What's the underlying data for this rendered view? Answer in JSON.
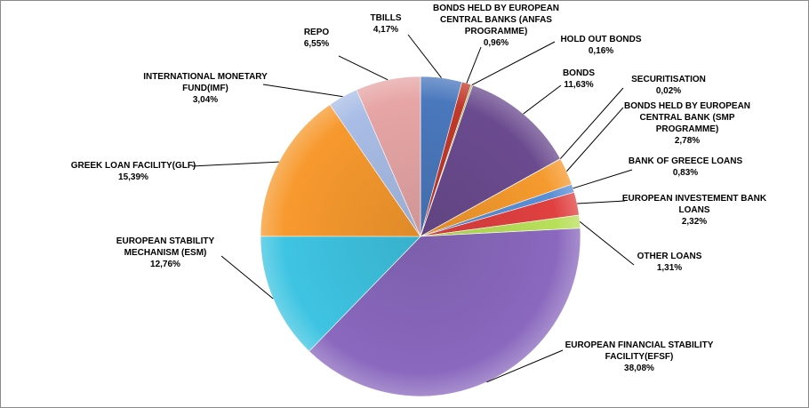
{
  "chart_data": {
    "type": "pie",
    "title": "",
    "start_angle_deg": 0,
    "direction": "clockwise",
    "slices": [
      {
        "name": "TBILLS",
        "label_lines": [
          "TBILLS"
        ],
        "value_label": "4,17%",
        "value": 4.17,
        "color": "#4a78bd"
      },
      {
        "name": "BONDS HELD BY EUROPEAN CENTRAL BANKS (ANFAS PROGRAMME)",
        "label_lines": [
          "BONDS HELD BY EUROPEAN",
          "CENTRAL BANKS (ANFAS",
          "PROGRAMME)"
        ],
        "value_label": "0,96%",
        "value": 0.96,
        "color": "#c0392b"
      },
      {
        "name": "HOLD OUT BONDS",
        "label_lines": [
          "HOLD OUT BONDS"
        ],
        "value_label": "0,16%",
        "value": 0.16,
        "color": "#8bb33f"
      },
      {
        "name": "BONDS",
        "label_lines": [
          "BONDS"
        ],
        "value_label": "11,63%",
        "value": 11.63,
        "color": "#6b4b8f"
      },
      {
        "name": "SECURITISATION",
        "label_lines": [
          "SECURITISATION"
        ],
        "value_label": "0,02%",
        "value": 0.02,
        "color": "#2ab0c8"
      },
      {
        "name": "BONDS HELD BY EUROPEAN CENTRAL BANK (SMP PROGRAMME)",
        "label_lines": [
          "BONDS HELD BY EUROPEAN",
          "CENTRAL BANK (SMP",
          "PROGRAMME)"
        ],
        "value_label": "2,78%",
        "value": 2.78,
        "color": "#f59a2e"
      },
      {
        "name": "BANK OF GREECE LOANS",
        "label_lines": [
          "BANK OF GREECE LOANS"
        ],
        "value_label": "0,83%",
        "value": 0.83,
        "color": "#5a8fd6"
      },
      {
        "name": "EUROPEAN INVESTEMENT BANK LOANS",
        "label_lines": [
          "EUROPEAN INVESTEMENT BANK",
          "LOANS"
        ],
        "value_label": "2,32%",
        "value": 2.32,
        "color": "#e04040"
      },
      {
        "name": "OTHER LOANS",
        "label_lines": [
          "OTHER LOANS"
        ],
        "value_label": "1,31%",
        "value": 1.31,
        "color": "#b8df5a"
      },
      {
        "name": "EUROPEAN FINANCIAL STABILITY FACILITY(EFSF)",
        "label_lines": [
          "EUROPEAN FINANCIAL STABILITY",
          "FACILITY(EFSF)"
        ],
        "value_label": "38,08%",
        "value": 38.08,
        "color": "#8a68be"
      },
      {
        "name": "EUROPEAN STABILITY MECHANISM (ESM)",
        "label_lines": [
          "EUROPEAN  STABILITY",
          "MECHANISM  (ESM)"
        ],
        "value_label": "12,76%",
        "value": 12.76,
        "color": "#3ec4e2"
      },
      {
        "name": "GREEK LOAN FACILITY(GLF)",
        "label_lines": [
          "GREEK LOAN FACILITY(GLF)"
        ],
        "value_label": "15,39%",
        "value": 15.39,
        "color": "#f7992e"
      },
      {
        "name": "INTERNATIONAL MONETARY FUND(IMF)",
        "label_lines": [
          "INTERNATIONAL MONETARY",
          "FUND(IMF)"
        ],
        "value_label": "3,04%",
        "value": 3.04,
        "color": "#a9bde6"
      },
      {
        "name": "REPO",
        "label_lines": [
          "REPO"
        ],
        "value_label": "6,55%",
        "value": 6.55,
        "color": "#e7a5a5"
      }
    ]
  }
}
